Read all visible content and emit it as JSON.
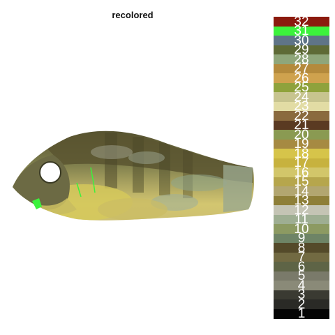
{
  "title": "recolored",
  "palette": [
    {
      "label": "32",
      "color": "#8b1a0e"
    },
    {
      "label": "31",
      "color": "#3cf23c"
    },
    {
      "label": "30",
      "color": "#5f7487"
    },
    {
      "label": "29",
      "color": "#5e6a36"
    },
    {
      "label": "28",
      "color": "#8fa67a"
    },
    {
      "label": "27",
      "color": "#b48a3c"
    },
    {
      "label": "26",
      "color": "#cfa24e"
    },
    {
      "label": "25",
      "color": "#8fa23c"
    },
    {
      "label": "24",
      "color": "#c7c48f"
    },
    {
      "label": "23",
      "color": "#e2dca4"
    },
    {
      "label": "22",
      "color": "#8a6a3e"
    },
    {
      "label": "21",
      "color": "#5a3a22"
    },
    {
      "label": "20",
      "color": "#8a9a52"
    },
    {
      "label": "19",
      "color": "#a68a42"
    },
    {
      "label": "18",
      "color": "#d6c44a"
    },
    {
      "label": "17",
      "color": "#c7b23e"
    },
    {
      "label": "16",
      "color": "#d2c66a"
    },
    {
      "label": "15",
      "color": "#b6a64c"
    },
    {
      "label": "14",
      "color": "#b2a670"
    },
    {
      "label": "13",
      "color": "#8e7f38"
    },
    {
      "label": "12",
      "color": "#c4c4b4"
    },
    {
      "label": "11",
      "color": "#9eae92"
    },
    {
      "label": "10",
      "color": "#8c9a62"
    },
    {
      "label": "9",
      "color": "#6e8466"
    },
    {
      "label": "8",
      "color": "#544a2a"
    },
    {
      "label": "7",
      "color": "#726a42"
    },
    {
      "label": "6",
      "color": "#5e6446"
    },
    {
      "label": "5",
      "color": "#7a7a6a"
    },
    {
      "label": "4",
      "color": "#8a8a78"
    },
    {
      "label": "3",
      "color": "#3a3a32"
    },
    {
      "label": "2",
      "color": "#2a2a26"
    },
    {
      "label": "1",
      "color": "#050505"
    }
  ]
}
